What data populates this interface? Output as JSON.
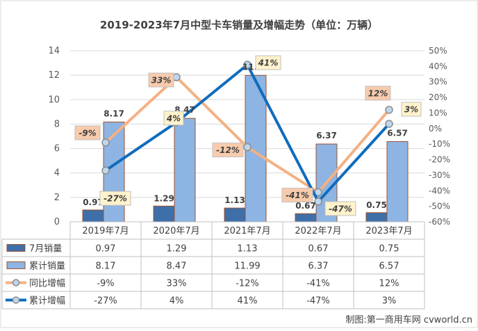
{
  "chart_data": {
    "type": "bar",
    "title": "2019-2023年7月中型卡车销量及增幅走势（单位：万辆）",
    "categories": [
      "2019年7月",
      "2020年7月",
      "2021年7月",
      "2022年7月",
      "2023年7月"
    ],
    "left_axis": {
      "ylim": [
        0,
        14
      ],
      "ticks": [
        "0",
        "2",
        "4",
        "6",
        "8",
        "10",
        "12",
        "14"
      ]
    },
    "right_axis": {
      "ylim": [
        -60,
        50
      ],
      "ticks": [
        "-60%",
        "-50%",
        "-40%",
        "-30%",
        "-20%",
        "-10%",
        "0%",
        "10%",
        "20%",
        "30%",
        "40%",
        "50%"
      ]
    },
    "grid": true,
    "legend": "table-bottom",
    "series": [
      {
        "name": "7月销量",
        "kind": "bar",
        "axis": "left",
        "color": "#3e6fa8",
        "values": [
          0.97,
          1.29,
          1.13,
          0.67,
          0.75
        ],
        "labels": [
          "0.97",
          "1.29",
          "1.13",
          "0.67",
          "0.75"
        ]
      },
      {
        "name": "累计销量",
        "kind": "bar",
        "axis": "left",
        "color": "#8db4e2",
        "values": [
          8.17,
          8.47,
          11.99,
          6.37,
          6.57
        ],
        "labels": [
          "8.17",
          "8.47",
          "11.99",
          "6.37",
          "6.57"
        ]
      },
      {
        "name": "同比增幅",
        "kind": "line",
        "axis": "right",
        "color": "#f4b183",
        "values": [
          -9,
          33,
          -12,
          -41,
          12
        ],
        "labels": [
          "-9%",
          "33%",
          "-12%",
          "-41%",
          "12%"
        ]
      },
      {
        "name": "累计增幅",
        "kind": "line",
        "axis": "right",
        "color": "#0f6cbd",
        "values": [
          -27,
          4,
          41,
          -47,
          3
        ],
        "labels": [
          "-27%",
          "4%",
          "41%",
          "-47%",
          "3%"
        ]
      }
    ]
  },
  "source_note": "制图:第一商用车网 cvworld.cn"
}
